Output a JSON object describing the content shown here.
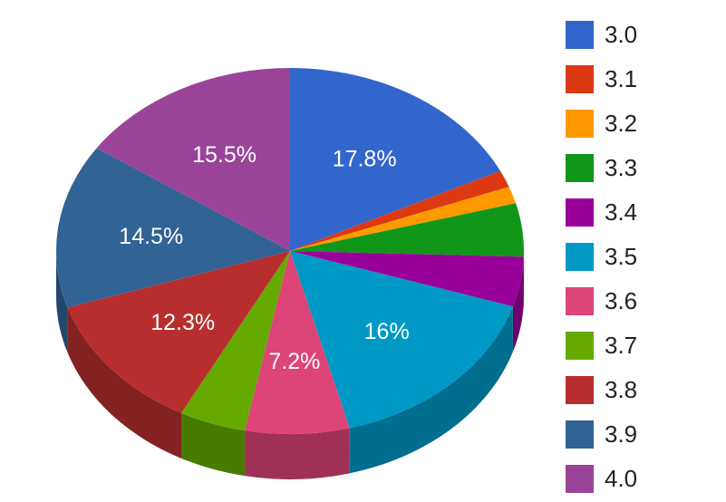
{
  "chart_data": {
    "type": "pie",
    "style": "3d",
    "title": "",
    "categories": [
      "3.0",
      "3.1",
      "3.2",
      "3.3",
      "3.4",
      "3.5",
      "3.6",
      "3.7",
      "3.8",
      "3.9",
      "4.0"
    ],
    "values": [
      17.8,
      1.5,
      1.5,
      4.7,
      4.4,
      16,
      7.2,
      4.6,
      12.3,
      14.5,
      15.5
    ],
    "data_labels": [
      "17.8%",
      "",
      "",
      "",
      "",
      "16%",
      "7.2%",
      "",
      "12.3%",
      "14.5%",
      "15.5%"
    ],
    "colors": [
      "#3366cc",
      "#dc3912",
      "#ff9900",
      "#109618",
      "#990099",
      "#0099c6",
      "#dd4477",
      "#66aa00",
      "#b82e2e",
      "#316395",
      "#994499"
    ],
    "legend_position": "right",
    "start_angle": "12 o'clock, clockwise"
  },
  "legend": {
    "items": [
      {
        "label": "3.0",
        "color": "#3366cc"
      },
      {
        "label": "3.1",
        "color": "#dc3912"
      },
      {
        "label": "3.2",
        "color": "#ff9900"
      },
      {
        "label": "3.3",
        "color": "#109618"
      },
      {
        "label": "3.4",
        "color": "#990099"
      },
      {
        "label": "3.5",
        "color": "#0099c6"
      },
      {
        "label": "3.6",
        "color": "#dd4477"
      },
      {
        "label": "3.7",
        "color": "#66aa00"
      },
      {
        "label": "3.8",
        "color": "#b82e2e"
      },
      {
        "label": "3.9",
        "color": "#316395"
      },
      {
        "label": "4.0",
        "color": "#994499"
      }
    ]
  }
}
